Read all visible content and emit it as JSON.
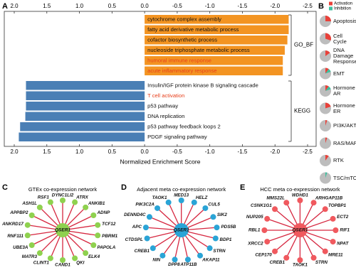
{
  "panel_labels": [
    "A",
    "B",
    "C",
    "D",
    "E"
  ],
  "chart_data": [
    {
      "type": "bar",
      "orientation": "horizontal",
      "x_label": "Normalized Enrichment Score",
      "xlim": [
        2,
        -2.5
      ],
      "xticks": [
        {
          "value": 2,
          "label": "2.0"
        },
        1.5,
        {
          "value": 1,
          "label": "1.0"
        },
        0.5,
        {
          "value": 0,
          "label": "0.0"
        },
        -0.5,
        {
          "value": -1,
          "label": "-1.0"
        },
        -1.5,
        {
          "value": -2,
          "label": "-2.0"
        },
        -2.5
      ],
      "groups": [
        {
          "name": "GO_BF",
          "color": "#f39422",
          "categories": [
            "cytochrome complex assembly",
            "fatty acid derivative metabolic process",
            "cofactor biosynthetic process",
            "nucleoside triphosphate metabolic process",
            "humoral immune response",
            "acute inflammatory response"
          ],
          "values": [
            -2.21,
            -2.21,
            -2.19,
            -2.15,
            -2.12,
            -2.12
          ],
          "label_colors": [
            "#111111",
            "#111111",
            "#111111",
            "#111111",
            "#e8401c",
            "#e8401c"
          ]
        },
        {
          "name": "KEGG",
          "color": "#4a7fb5",
          "categories": [
            "Insulin/IGF protein kinase B signaling cascade",
            "T cell activation",
            "p53 pathway",
            "DNA replication",
            "p53 pathway feedback loops 2",
            "PDGF signaling pathway"
          ],
          "values": [
            1.82,
            1.82,
            1.82,
            1.83,
            1.91,
            1.93
          ],
          "label_colors": [
            "#111111",
            "#e8401c",
            "#111111",
            "#111111",
            "#111111",
            "#111111"
          ]
        }
      ]
    },
    {
      "type": "pie",
      "base_color": "#bdbdbd",
      "categories": [
        "Apoptosis",
        "Cell Cycle",
        "DNA Damage Response",
        "EMT",
        "Hormone AR",
        "Hormone ER",
        "PI3K/AKT",
        "RAS/MAPK",
        "RTK",
        "TSC/mTOR"
      ],
      "series": [
        {
          "name": "Activation",
          "color": "#e8413a",
          "values": [
            25,
            30,
            15,
            10,
            10,
            20,
            5,
            5,
            10,
            0
          ]
        },
        {
          "name": "Inhibition",
          "color": "#3fbf9f",
          "values": [
            0,
            0,
            0,
            10,
            10,
            0,
            0,
            0,
            0,
            5
          ]
        }
      ]
    }
  ],
  "networks": [
    {
      "title": "GTEx co-expression network",
      "center": "QSER1",
      "color": "#8fd14f",
      "edge_color": "#d6263f",
      "nodes": [
        "DYNC1LI2",
        "ATRX",
        "ANKIB1",
        "ADNP",
        "TCF12",
        "PBRM1",
        "PAPOLA",
        "ELK4",
        "QKI",
        "CAND1",
        "CLINT1",
        "MATR3",
        "UBE3A",
        "RNF111",
        "ANKRD17",
        "APPBP2",
        "ASH1L",
        "RSF1"
      ]
    },
    {
      "title": "Adjacent meta co-expression network",
      "center": "QSER1",
      "color": "#2aa4d6",
      "edge_color": "#d6263f",
      "nodes": [
        "MED13",
        "HELZ",
        "CUL5",
        "SIK2",
        "PDS5B",
        "BDP1",
        "STRN",
        "AKAP11",
        "ATP11B",
        "DPP8",
        "NIN",
        "CREB1",
        "CTDSPL",
        "APC",
        "DENND4C",
        "PIK3C2A",
        "TAOK1"
      ]
    },
    {
      "title": "HCC meta co-expression network",
      "center": "QSER1",
      "color": "#f0595e",
      "edge_color": "#d6263f",
      "nodes": [
        "WDHD1",
        "ARHGAP11B",
        "TOPBP1",
        "ECT2",
        "RIF1",
        "NPAT",
        "MRE11",
        "STRN",
        "TAOK1",
        "CREB1",
        "CEP170",
        "XRCC2",
        "RBL1",
        "NUP205",
        "CSNK1G1",
        "MMS22L"
      ]
    }
  ]
}
